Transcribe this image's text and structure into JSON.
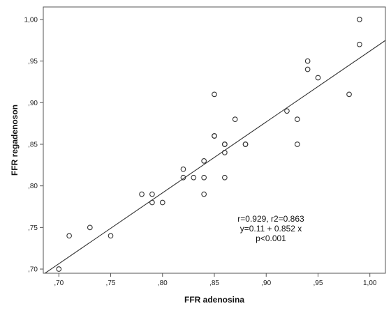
{
  "chart_data": {
    "type": "scatter",
    "title": "",
    "xlabel": "FFR adenosina",
    "ylabel": "FFR regadenoson",
    "xlim": [
      0.685,
      1.015
    ],
    "ylim": [
      0.695,
      1.015
    ],
    "x_ticks": [
      ",70",
      ",75",
      ",80",
      ",85",
      ",90",
      ",95",
      "1,00"
    ],
    "x_tick_values": [
      0.7,
      0.75,
      0.8,
      0.85,
      0.9,
      0.95,
      1.0
    ],
    "y_ticks": [
      ",70",
      ",75",
      ",80",
      ",85",
      ",90",
      ",95",
      "1,00"
    ],
    "y_tick_values": [
      0.7,
      0.75,
      0.8,
      0.85,
      0.9,
      0.95,
      1.0
    ],
    "grid": false,
    "points": [
      {
        "x": 0.7,
        "y": 0.7
      },
      {
        "x": 0.71,
        "y": 0.74
      },
      {
        "x": 0.73,
        "y": 0.75
      },
      {
        "x": 0.75,
        "y": 0.74
      },
      {
        "x": 0.78,
        "y": 0.79
      },
      {
        "x": 0.79,
        "y": 0.79
      },
      {
        "x": 0.79,
        "y": 0.78
      },
      {
        "x": 0.8,
        "y": 0.78
      },
      {
        "x": 0.82,
        "y": 0.82
      },
      {
        "x": 0.82,
        "y": 0.81
      },
      {
        "x": 0.83,
        "y": 0.81
      },
      {
        "x": 0.84,
        "y": 0.83
      },
      {
        "x": 0.84,
        "y": 0.81
      },
      {
        "x": 0.84,
        "y": 0.79
      },
      {
        "x": 0.85,
        "y": 0.91
      },
      {
        "x": 0.85,
        "y": 0.86
      },
      {
        "x": 0.85,
        "y": 0.86
      },
      {
        "x": 0.86,
        "y": 0.85
      },
      {
        "x": 0.86,
        "y": 0.85
      },
      {
        "x": 0.86,
        "y": 0.84
      },
      {
        "x": 0.86,
        "y": 0.81
      },
      {
        "x": 0.87,
        "y": 0.88
      },
      {
        "x": 0.88,
        "y": 0.85
      },
      {
        "x": 0.88,
        "y": 0.85
      },
      {
        "x": 0.92,
        "y": 0.89
      },
      {
        "x": 0.93,
        "y": 0.88
      },
      {
        "x": 0.93,
        "y": 0.85
      },
      {
        "x": 0.94,
        "y": 0.95
      },
      {
        "x": 0.94,
        "y": 0.94
      },
      {
        "x": 0.95,
        "y": 0.93
      },
      {
        "x": 0.98,
        "y": 0.91
      },
      {
        "x": 0.99,
        "y": 1.0
      },
      {
        "x": 0.99,
        "y": 0.97
      }
    ],
    "fit_line": {
      "intercept": 0.11,
      "slope": 0.852
    },
    "annotation": [
      "r=0.929, r2=0.863",
      "y=0.11 + 0.852 x",
      "p<0.001"
    ],
    "colors": {
      "marker_stroke": "#333333",
      "line": "#333333",
      "frame": "#555555"
    }
  }
}
